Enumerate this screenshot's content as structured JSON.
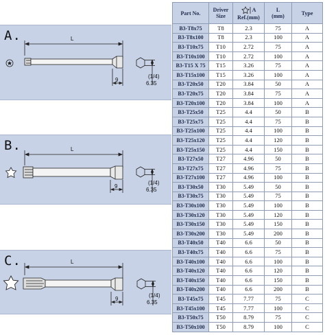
{
  "panels": [
    {
      "letter": "A.",
      "length_label": "L",
      "dim_9": "9",
      "frac_num": "1",
      "frac_den": "4",
      "dim_635": "6.35"
    },
    {
      "letter": "B.",
      "length_label": "L",
      "dim_9": "9",
      "frac_num": "1",
      "frac_den": "4",
      "dim_635": "6.35"
    },
    {
      "letter": "C.",
      "length_label": "L",
      "dim_9": "9",
      "frac_num": "1",
      "frac_den": "4",
      "dim_635": "6.35"
    }
  ],
  "table": {
    "headers": {
      "part": "Part No.",
      "driver_1": "Driver",
      "driver_2": "Size",
      "ref_letter": "A",
      "ref_label": "Ref.(mm)",
      "l_1": "L",
      "l_2": "(mm)",
      "type": "Type"
    },
    "rows": [
      [
        "B3-T8x75",
        "T8",
        "2.3",
        "75",
        "A"
      ],
      [
        "B3-T8x100",
        "T8",
        "2.3",
        "100",
        "A"
      ],
      [
        "B3-T10x75",
        "T10",
        "2.72",
        "75",
        "A"
      ],
      [
        "B3-T10x100",
        "T10",
        "2.72",
        "100",
        "A"
      ],
      [
        "B3-T15 X 75",
        "T15",
        "3.26",
        "75",
        "A"
      ],
      [
        "B3-T15x100",
        "T15",
        "3.26",
        "100",
        "A"
      ],
      [
        "B3-T20x50",
        "T20",
        "3.84",
        "50",
        "A"
      ],
      [
        "B3-T20x75",
        "T20",
        "3.84",
        "75",
        "A"
      ],
      [
        "B3-T20x100",
        "T20",
        "3.84",
        "100",
        "A"
      ],
      [
        "B3-T25x50",
        "T25",
        "4.4",
        "50",
        "B"
      ],
      [
        "B3-T25x75",
        "T25",
        "4.4",
        "75",
        "B"
      ],
      [
        "B3-T25x100",
        "T25",
        "4.4",
        "100",
        "B"
      ],
      [
        "B3-T25x120",
        "T25",
        "4.4",
        "120",
        "B"
      ],
      [
        "B3-T25x150",
        "T25",
        "4.4",
        "150",
        "B"
      ],
      [
        "B3-T27x50",
        "T27",
        "4.96",
        "50",
        "B"
      ],
      [
        "B3-T27x75",
        "T27",
        "4.96",
        "75",
        "B"
      ],
      [
        "B3-T27x100",
        "T27",
        "4.96",
        "100",
        "B"
      ],
      [
        "B3-T30x50",
        "T30",
        "5.49",
        "50",
        "B"
      ],
      [
        "B3-T30x75",
        "T30",
        "5.49",
        "75",
        "B"
      ],
      [
        "B3-T30x100",
        "T30",
        "5.49",
        "100",
        "B"
      ],
      [
        "B3-T30x120",
        "T30",
        "5.49",
        "120",
        "B"
      ],
      [
        "B3-T30x150",
        "T30",
        "5.49",
        "150",
        "B"
      ],
      [
        "B3-T30x200",
        "T30",
        "5.49",
        "200",
        "B"
      ],
      [
        "B3-T40x50",
        "T40",
        "6.6",
        "50",
        "B"
      ],
      [
        "B3-T40x75",
        "T40",
        "6.6",
        "75",
        "B"
      ],
      [
        "B3-T40x100",
        "T40",
        "6.6",
        "100",
        "B"
      ],
      [
        "B3-T40x120",
        "T40",
        "6.6",
        "120",
        "B"
      ],
      [
        "B3-T40x150",
        "T40",
        "6.6",
        "150",
        "B"
      ],
      [
        "B3-T40x200",
        "T40",
        "6.6",
        "200",
        "B"
      ],
      [
        "B3-T45x75",
        "T45",
        "7.77",
        "75",
        "C"
      ],
      [
        "B3-T45x100",
        "T45",
        "7.77",
        "100",
        "C"
      ],
      [
        "B3-T50x75",
        "T50",
        "8.79",
        "75",
        "C"
      ],
      [
        "B3-T50x100",
        "T50",
        "8.79",
        "100",
        "C"
      ]
    ]
  }
}
